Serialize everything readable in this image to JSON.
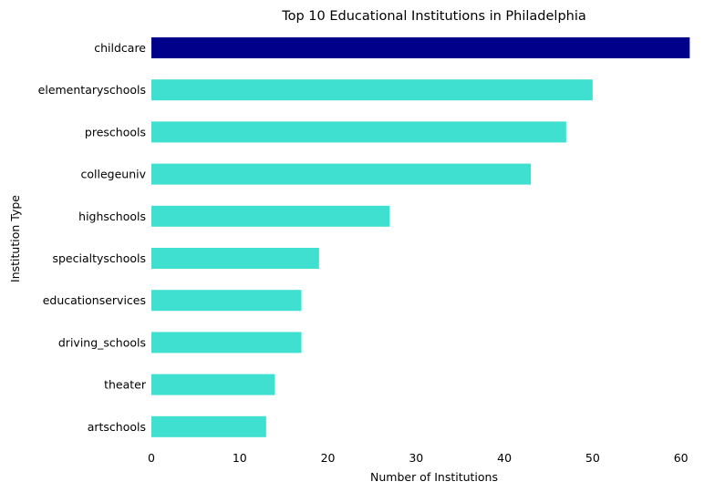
{
  "chart_data": {
    "type": "bar",
    "orientation": "horizontal",
    "title": "Top 10 Educational Institutions in Philadelphia",
    "xlabel": "Number of Institutions",
    "ylabel": "Institution Type",
    "categories": [
      "childcare",
      "elementaryschools",
      "preschools",
      "collegeuniv",
      "highschools",
      "specialtyschools",
      "educationservices",
      "driving_schools",
      "theater",
      "artschools"
    ],
    "values": [
      61,
      50,
      47,
      43,
      27,
      19,
      17,
      17,
      14,
      13
    ],
    "colors": [
      "#00008b",
      "#40e0d0",
      "#40e0d0",
      "#40e0d0",
      "#40e0d0",
      "#40e0d0",
      "#40e0d0",
      "#40e0d0",
      "#40e0d0",
      "#40e0d0"
    ],
    "xlim": [
      0,
      62
    ],
    "xticks": [
      0,
      10,
      20,
      30,
      40,
      50,
      60
    ],
    "grid": false,
    "legend": "none"
  }
}
